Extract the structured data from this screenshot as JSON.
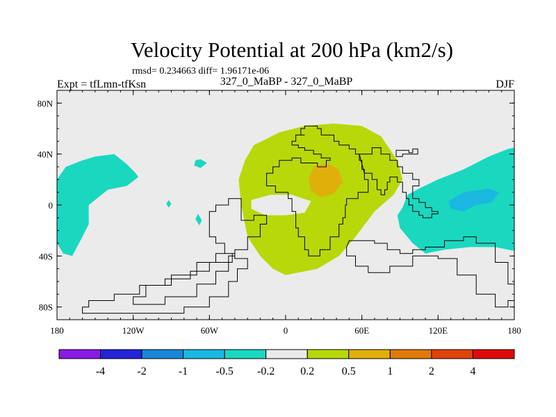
{
  "chart_data": {
    "type": "heatmap",
    "title": "Velocity Potential at 200 hPa (km2/s)",
    "rmsd_text": "rmsd= 0.234663  diff= 1.96171e-06",
    "left_label": "Expt = tfLmn-tfKsn",
    "center_label": "327_0_MaBP - 327_0_MaBP",
    "right_label": "DJF",
    "x_ticks": [
      {
        "value": -180,
        "label": "180"
      },
      {
        "value": -120,
        "label": "120W"
      },
      {
        "value": -60,
        "label": "60W"
      },
      {
        "value": 0,
        "label": "0"
      },
      {
        "value": 60,
        "label": "60E"
      },
      {
        "value": 120,
        "label": "120E"
      },
      {
        "value": 180,
        "label": "180"
      }
    ],
    "y_ticks": [
      {
        "value": 80,
        "label": "80N"
      },
      {
        "value": 40,
        "label": "40N"
      },
      {
        "value": 0,
        "label": "0"
      },
      {
        "value": -40,
        "label": "40S"
      },
      {
        "value": -80,
        "label": "80S"
      }
    ],
    "xlim": [
      -180,
      180
    ],
    "ylim": [
      -90,
      90
    ],
    "colorbar": {
      "levels": [
        "-4",
        "-2",
        "-1",
        "-0.5",
        "-0.2",
        "0.2",
        "0.5",
        "1",
        "2",
        "4"
      ],
      "colors": [
        "#8a1ae6",
        "#2424d8",
        "#1a86d8",
        "#1ab8e0",
        "#1ad8c0",
        "#ebebeb",
        "#b8d80a",
        "#e0b00a",
        "#e07a0a",
        "#e0420a",
        "#e00a0a"
      ]
    },
    "background_color": "#ebebeb",
    "regions": [
      {
        "name": "positive-0.2-0.5-large",
        "level": 0.2,
        "color": "#b8d80a",
        "lonlat": [
          [
            -25,
            47
          ],
          [
            -5,
            57
          ],
          [
            15,
            62
          ],
          [
            38,
            64
          ],
          [
            60,
            62
          ],
          [
            75,
            54
          ],
          [
            88,
            35
          ],
          [
            92,
            20
          ],
          [
            85,
            8
          ],
          [
            70,
            -5
          ],
          [
            55,
            -25
          ],
          [
            42,
            -40
          ],
          [
            25,
            -50
          ],
          [
            0,
            -55
          ],
          [
            -10,
            -50
          ],
          [
            -20,
            -40
          ],
          [
            -30,
            -25
          ],
          [
            -35,
            0
          ],
          [
            -37,
            20
          ],
          [
            -32,
            35
          ]
        ]
      },
      {
        "name": "positive-0.5-1-core",
        "level": 0.5,
        "color": "#e0b00a",
        "lonlat": [
          [
            18,
            21
          ],
          [
            22,
            30
          ],
          [
            32,
            33
          ],
          [
            42,
            28
          ],
          [
            45,
            18
          ],
          [
            38,
            9
          ],
          [
            28,
            6
          ],
          [
            20,
            11
          ]
        ]
      },
      {
        "name": "negative-west-pacific",
        "level": -0.5,
        "color": "#1ad8c0",
        "lonlat": [
          [
            -173,
            30
          ],
          [
            -160,
            35
          ],
          [
            -150,
            38
          ],
          [
            -135,
            40
          ],
          [
            -125,
            32
          ],
          [
            -118,
            25
          ],
          [
            -116,
            22
          ],
          [
            -125,
            15
          ],
          [
            -140,
            12
          ],
          [
            -155,
            0
          ],
          [
            -155,
            -15
          ],
          [
            -160,
            -25
          ],
          [
            -168,
            -40
          ],
          [
            -175,
            -38
          ],
          [
            -180,
            -30
          ],
          [
            -180,
            20
          ]
        ]
      },
      {
        "name": "negative-small-spot-north",
        "level": -0.5,
        "color": "#1ad8c0",
        "lonlat": [
          [
            -67,
            36
          ],
          [
            -62,
            33
          ],
          [
            -67,
            29
          ],
          [
            -72,
            31
          ],
          [
            -71,
            35
          ]
        ]
      },
      {
        "name": "negative-small-spot-equator",
        "level": -0.5,
        "color": "#1ad8c0",
        "lonlat": [
          [
            -92,
            4
          ],
          [
            -90,
            1
          ],
          [
            -92,
            -2
          ],
          [
            -94,
            1
          ]
        ]
      },
      {
        "name": "negative-small-spot-south",
        "level": -0.5,
        "color": "#1ad8c0",
        "lonlat": [
          [
            -69,
            -7
          ],
          [
            -66,
            -12
          ],
          [
            -68,
            -16
          ],
          [
            -71,
            -11
          ]
        ]
      },
      {
        "name": "negative-east-pacific",
        "level": -0.5,
        "color": "#1ad8c0",
        "lonlat": [
          [
            180,
            45
          ],
          [
            175,
            44
          ],
          [
            160,
            38
          ],
          [
            140,
            28
          ],
          [
            120,
            20
          ],
          [
            105,
            13
          ],
          [
            96,
            8
          ],
          [
            92,
            -2
          ],
          [
            88,
            -8
          ],
          [
            90,
            -18
          ],
          [
            100,
            -30
          ],
          [
            110,
            -38
          ],
          [
            125,
            -35
          ],
          [
            145,
            -33
          ],
          [
            165,
            -33
          ],
          [
            180,
            -36
          ]
        ]
      },
      {
        "name": "negative-east-pacific-core",
        "level": -1,
        "color": "#1ab8e0",
        "lonlat": [
          [
            128,
            3
          ],
          [
            140,
            10
          ],
          [
            160,
            13
          ],
          [
            168,
            10
          ],
          [
            162,
            2
          ],
          [
            150,
            0
          ],
          [
            140,
            -5
          ],
          [
            130,
            -3
          ]
        ]
      },
      {
        "name": "enclosed-zero-band",
        "level": 0,
        "color": "#ebebeb",
        "lonlat": [
          [
            -27,
            4
          ],
          [
            -12,
            8
          ],
          [
            5,
            8
          ],
          [
            20,
            3
          ],
          [
            15,
            -6
          ],
          [
            0,
            -8
          ],
          [
            -16,
            -8
          ],
          [
            -27,
            -3
          ]
        ]
      }
    ],
    "coastlines": [
      {
        "name": "eurasia-africa",
        "lonlat": [
          [
            15,
            62
          ],
          [
            25,
            62
          ],
          [
            25,
            60
          ],
          [
            28,
            60
          ],
          [
            28,
            55
          ],
          [
            38,
            55
          ],
          [
            38,
            50
          ],
          [
            42,
            50
          ],
          [
            42,
            47
          ],
          [
            50,
            47
          ],
          [
            50,
            44
          ],
          [
            55,
            44
          ],
          [
            55,
            40
          ],
          [
            58,
            40
          ],
          [
            58,
            35
          ],
          [
            60,
            35
          ],
          [
            60,
            28
          ],
          [
            62,
            28
          ],
          [
            62,
            20
          ],
          [
            65,
            20
          ],
          [
            65,
            10
          ],
          [
            60,
            10
          ],
          [
            57,
            5
          ],
          [
            50,
            5
          ],
          [
            48,
            0
          ],
          [
            47,
            -10
          ],
          [
            45,
            -15
          ],
          [
            42,
            -25
          ],
          [
            35,
            -35
          ],
          [
            27,
            -40
          ],
          [
            22,
            -40
          ],
          [
            18,
            -35
          ],
          [
            15,
            -25
          ],
          [
            10,
            -18
          ],
          [
            8,
            -5
          ],
          [
            5,
            5
          ],
          [
            2,
            10
          ],
          [
            -5,
            10
          ],
          [
            -8,
            15
          ],
          [
            -12,
            15
          ],
          [
            -15,
            20
          ],
          [
            -15,
            25
          ],
          [
            -10,
            30
          ],
          [
            -5,
            35
          ],
          [
            5,
            37
          ],
          [
            10,
            37
          ],
          [
            12,
            33
          ],
          [
            20,
            33
          ],
          [
            25,
            30
          ],
          [
            30,
            30
          ],
          [
            32,
            35
          ],
          [
            35,
            37
          ],
          [
            28,
            40
          ],
          [
            25,
            40
          ],
          [
            22,
            43
          ],
          [
            15,
            45
          ],
          [
            10,
            47
          ],
          [
            5,
            50
          ],
          [
            8,
            55
          ],
          [
            15,
            55
          ],
          [
            12,
            60
          ],
          [
            15,
            62
          ]
        ]
      },
      {
        "name": "east-asia",
        "lonlat": [
          [
            58,
            40
          ],
          [
            68,
            40
          ],
          [
            68,
            45
          ],
          [
            75,
            45
          ],
          [
            75,
            40
          ],
          [
            82,
            40
          ],
          [
            82,
            35
          ],
          [
            88,
            35
          ],
          [
            88,
            30
          ],
          [
            92,
            30
          ],
          [
            92,
            25
          ],
          [
            100,
            25
          ],
          [
            100,
            20
          ],
          [
            105,
            20
          ],
          [
            105,
            15
          ],
          [
            100,
            10
          ],
          [
            100,
            5
          ],
          [
            103,
            5
          ],
          [
            105,
            2
          ],
          [
            110,
            -2
          ],
          [
            115,
            -5
          ],
          [
            120,
            -7
          ],
          [
            115,
            -10
          ],
          [
            108,
            -8
          ],
          [
            105,
            -5
          ],
          [
            100,
            0
          ],
          [
            97,
            5
          ],
          [
            95,
            10
          ],
          [
            92,
            18
          ],
          [
            88,
            22
          ],
          [
            82,
            18
          ],
          [
            80,
            12
          ],
          [
            78,
            8
          ],
          [
            75,
            12
          ],
          [
            72,
            20
          ],
          [
            68,
            25
          ],
          [
            62,
            25
          ]
        ]
      },
      {
        "name": "north-america-fragment",
        "lonlat": [
          [
            87,
            43
          ],
          [
            97,
            43
          ],
          [
            97,
            41
          ],
          [
            100,
            41
          ],
          [
            100,
            44
          ],
          [
            104,
            44
          ],
          [
            104,
            40
          ],
          [
            96,
            40
          ],
          [
            92,
            38
          ],
          [
            87,
            38
          ]
        ]
      },
      {
        "name": "southern-landmass-west",
        "lonlat": [
          [
            -35,
            -12
          ],
          [
            -25,
            -12
          ],
          [
            -25,
            -8
          ],
          [
            -15,
            -8
          ],
          [
            -15,
            -15
          ],
          [
            -20,
            -18
          ],
          [
            -20,
            -25
          ],
          [
            -30,
            -25
          ],
          [
            -30,
            -35
          ],
          [
            -40,
            -40
          ],
          [
            -45,
            -45
          ],
          [
            -60,
            -52
          ],
          [
            -75,
            -58
          ],
          [
            -95,
            -63
          ],
          [
            -115,
            -70
          ],
          [
            -135,
            -75
          ],
          [
            -155,
            -80
          ],
          [
            -160,
            -85
          ],
          [
            -120,
            -85
          ],
          [
            -80,
            -80
          ],
          [
            -60,
            -72
          ],
          [
            -45,
            -60
          ],
          [
            -38,
            -50
          ],
          [
            -30,
            -42
          ],
          [
            -40,
            -38
          ],
          [
            -55,
            -45
          ],
          [
            -70,
            -55
          ],
          [
            -90,
            -63
          ],
          [
            -110,
            -72
          ],
          [
            -120,
            -78
          ],
          [
            -95,
            -72
          ],
          [
            -70,
            -62
          ],
          [
            -55,
            -52
          ],
          [
            -45,
            -45
          ],
          [
            -42,
            -38
          ],
          [
            -48,
            -30
          ],
          [
            -55,
            -25
          ],
          [
            -60,
            -15
          ],
          [
            -60,
            -5
          ],
          [
            -55,
            0
          ],
          [
            -45,
            5
          ],
          [
            -38,
            5
          ],
          [
            -35,
            -5
          ]
        ]
      },
      {
        "name": "southern-landmass-east",
        "lonlat": [
          [
            50,
            -28
          ],
          [
            60,
            -28
          ],
          [
            70,
            -30
          ],
          [
            80,
            -35
          ],
          [
            90,
            -38
          ],
          [
            100,
            -35
          ],
          [
            110,
            -33
          ],
          [
            125,
            -28
          ],
          [
            140,
            -25
          ],
          [
            150,
            -30
          ],
          [
            165,
            -45
          ],
          [
            175,
            -62
          ],
          [
            180,
            -75
          ],
          [
            175,
            -80
          ],
          [
            165,
            -70
          ],
          [
            150,
            -55
          ],
          [
            135,
            -42
          ],
          [
            120,
            -40
          ],
          [
            100,
            -48
          ],
          [
            82,
            -53
          ],
          [
            65,
            -48
          ],
          [
            55,
            -40
          ],
          [
            48,
            -33
          ]
        ]
      }
    ]
  }
}
